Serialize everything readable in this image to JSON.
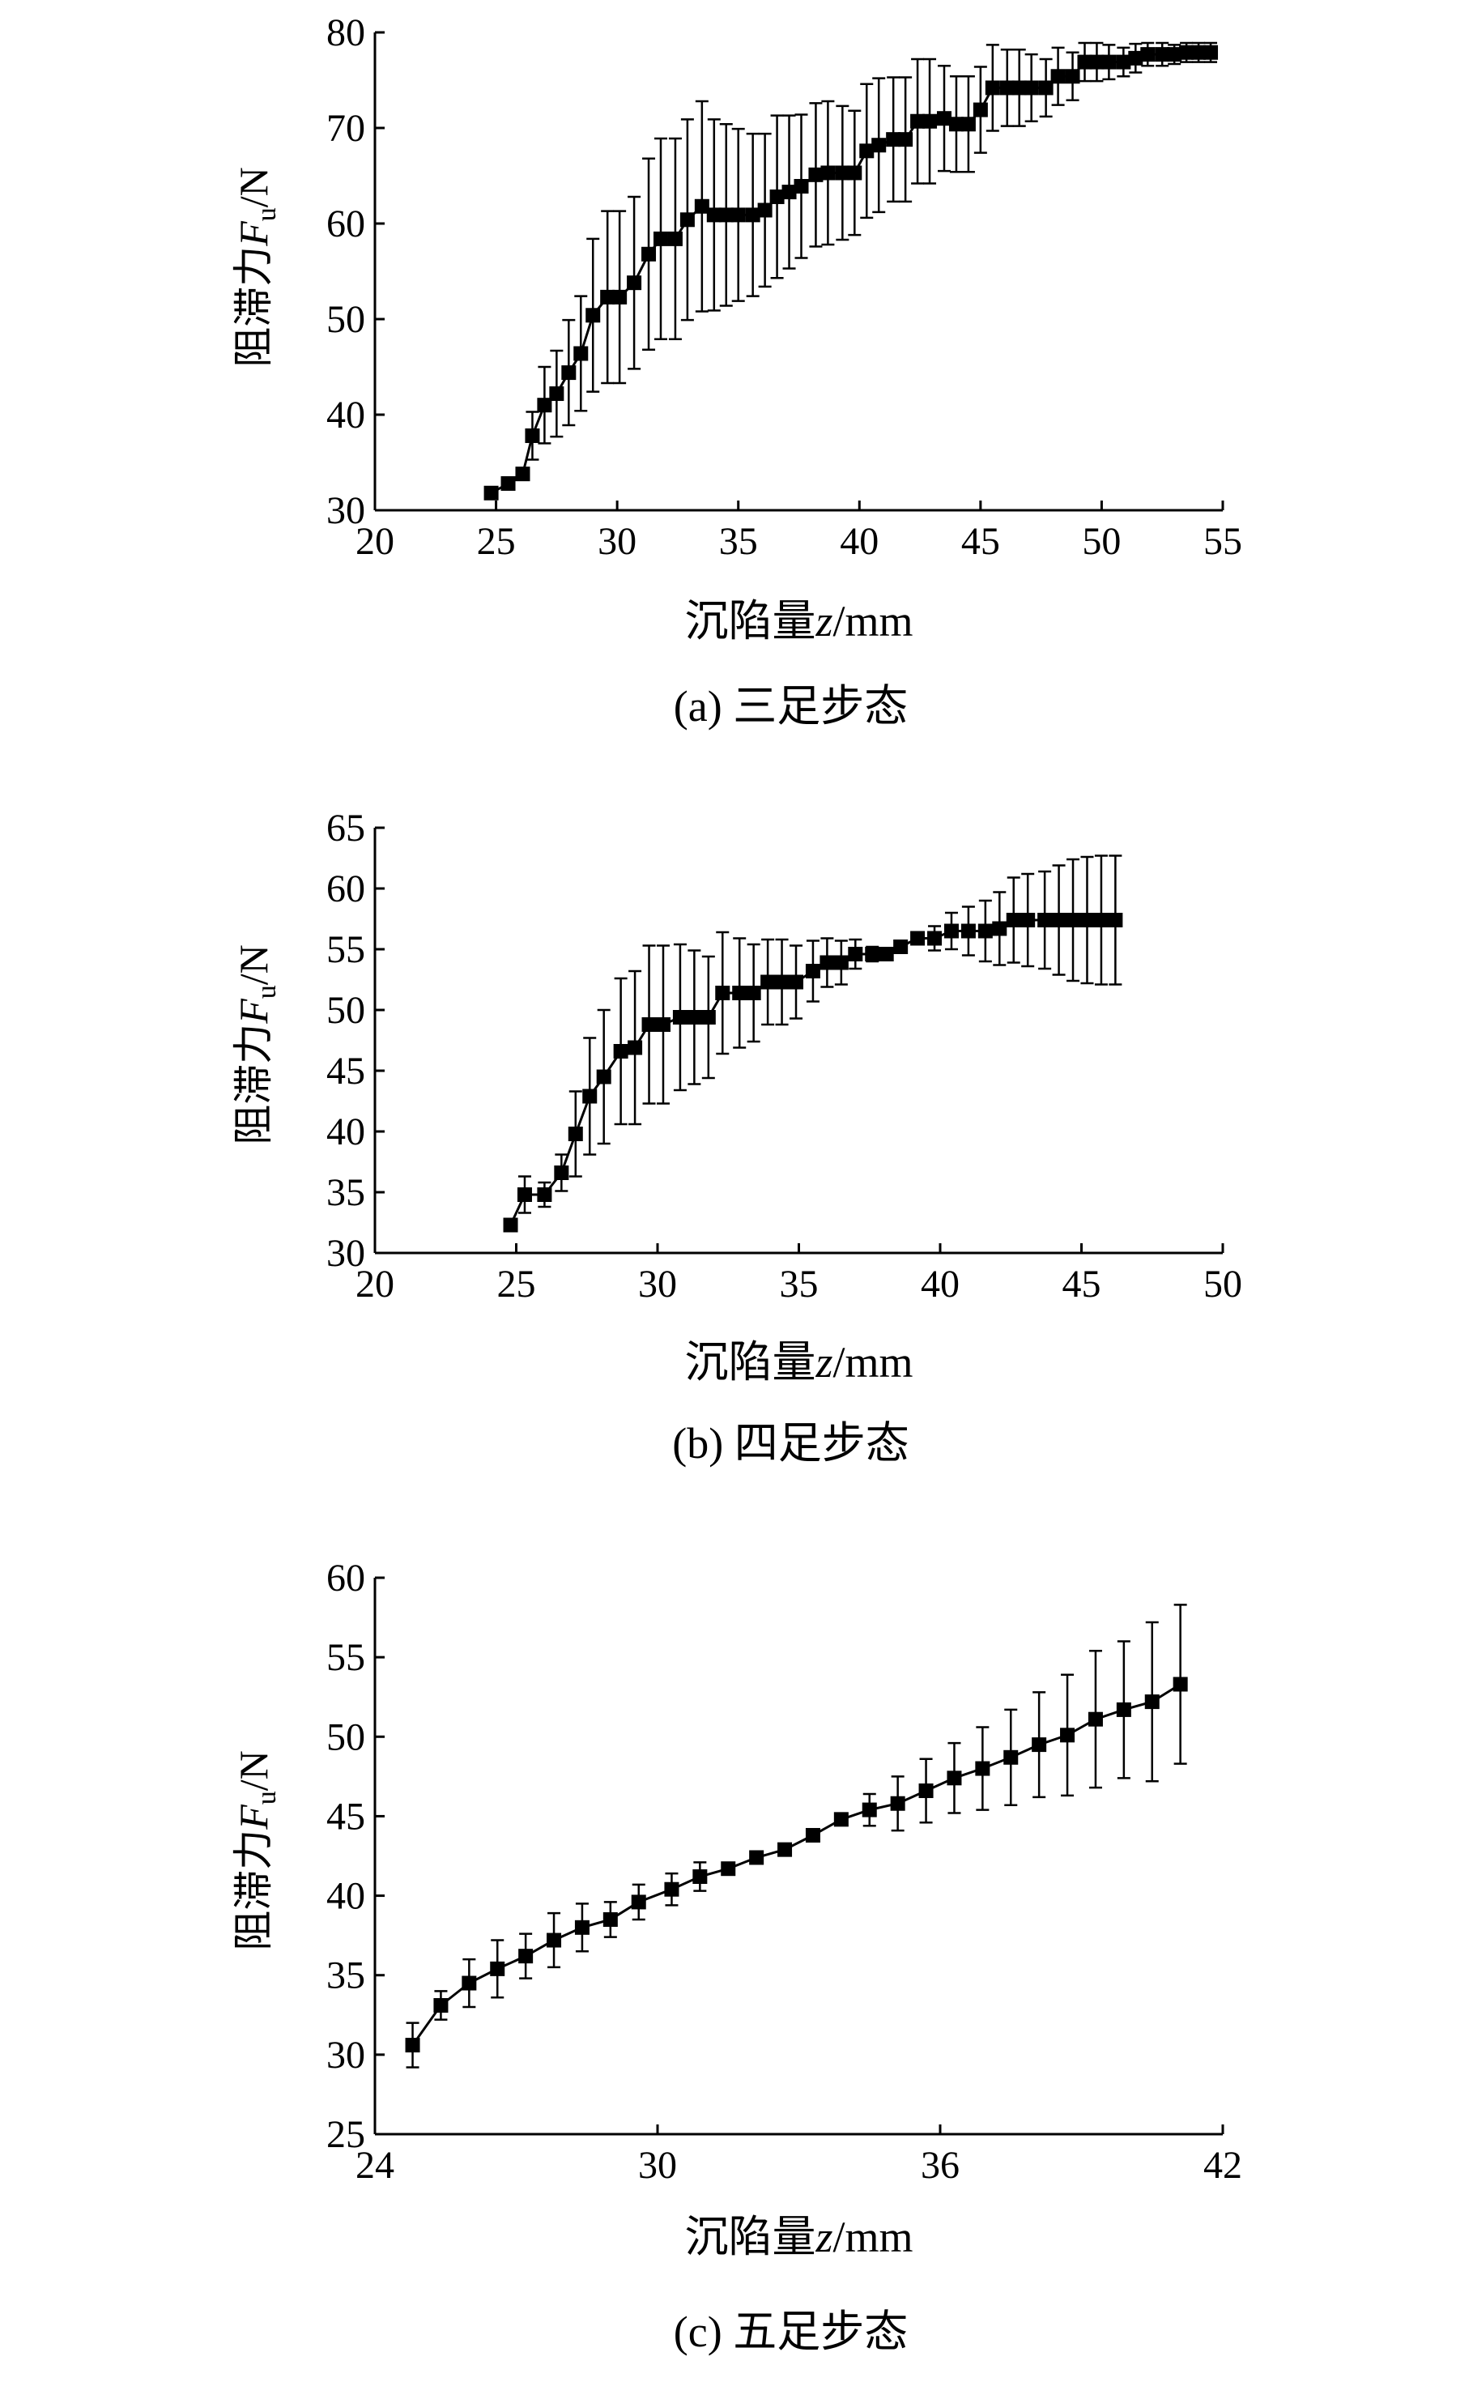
{
  "chart_data": [
    {
      "type": "line",
      "caption": "(a) 三足步态",
      "xlabel_prefix": "沉陷量",
      "xlabel_var": "z",
      "xlabel_unit": "/mm",
      "ylabel_prefix": "阻滞力",
      "ylabel_var": "F",
      "ylabel_sub": "u",
      "ylabel_unit": "/N",
      "xlim": [
        20,
        55
      ],
      "ylim": [
        30,
        80
      ],
      "xticks": [
        20,
        25,
        30,
        35,
        40,
        45,
        50,
        55
      ],
      "yticks": [
        30,
        40,
        50,
        60,
        70,
        80
      ],
      "xtick_labels": [
        "20",
        "25",
        "30",
        "35",
        "40",
        "45",
        "50",
        "55"
      ],
      "ytick_labels": [
        "30",
        "40",
        "50",
        "60",
        "70",
        "80"
      ],
      "series": [
        {
          "name": "三足步态",
          "x": [
            24.8,
            25.5,
            26.1,
            26.5,
            27.0,
            27.5,
            28.0,
            28.5,
            29.0,
            29.6,
            30.1,
            30.7,
            31.3,
            31.8,
            32.4,
            32.9,
            33.5,
            34.0,
            34.5,
            35.0,
            35.6,
            36.1,
            36.6,
            37.1,
            37.6,
            38.2,
            38.7,
            39.3,
            39.8,
            40.3,
            40.8,
            41.4,
            41.9,
            42.4,
            42.9,
            43.5,
            44.0,
            44.5,
            45.0,
            45.5,
            46.1,
            46.6,
            47.1,
            47.7,
            48.2,
            48.8,
            49.3,
            49.8,
            50.3,
            50.9,
            51.4,
            51.9,
            52.5,
            53.0,
            53.5,
            54.0,
            54.5
          ],
          "y": [
            31.8,
            32.8,
            33.8,
            37.8,
            41.0,
            42.2,
            44.4,
            46.4,
            50.4,
            52.3,
            52.3,
            53.8,
            56.8,
            58.4,
            58.4,
            60.4,
            61.8,
            60.9,
            60.9,
            60.9,
            60.9,
            61.4,
            62.8,
            63.3,
            63.9,
            65.1,
            65.3,
            65.3,
            65.3,
            67.6,
            68.2,
            68.8,
            68.8,
            70.7,
            70.7,
            71.0,
            70.4,
            70.4,
            71.9,
            74.2,
            74.2,
            74.2,
            74.2,
            74.2,
            75.4,
            75.4,
            76.9,
            76.9,
            76.9,
            76.9,
            77.3,
            77.7,
            77.7,
            77.7,
            77.9,
            77.9,
            77.9
          ],
          "err": [
            0,
            0,
            0,
            2.5,
            4.0,
            4.5,
            5.5,
            6.0,
            8.0,
            9.0,
            9.0,
            9.0,
            10.0,
            10.5,
            10.5,
            10.5,
            11.0,
            10.0,
            9.5,
            9.0,
            8.5,
            8.0,
            8.5,
            8.0,
            7.5,
            7.5,
            7.5,
            7.0,
            6.5,
            7.0,
            7.0,
            6.5,
            6.5,
            6.5,
            6.5,
            5.5,
            5.0,
            5.0,
            4.5,
            4.5,
            4.0,
            4.0,
            3.5,
            3.0,
            3.0,
            2.5,
            2.0,
            2.0,
            1.8,
            1.5,
            1.5,
            1.2,
            1.2,
            1.0,
            1.0,
            1.0,
            1.0
          ]
        }
      ]
    },
    {
      "type": "line",
      "caption": "(b) 四足步态",
      "xlabel_prefix": "沉陷量",
      "xlabel_var": "z",
      "xlabel_unit": "/mm",
      "ylabel_prefix": "阻滞力",
      "ylabel_var": "F",
      "ylabel_sub": "u",
      "ylabel_unit": "/N",
      "xlim": [
        20,
        50
      ],
      "ylim": [
        30,
        65
      ],
      "xticks": [
        20,
        25,
        30,
        35,
        40,
        45,
        50
      ],
      "yticks": [
        30,
        35,
        40,
        45,
        50,
        55,
        60,
        65
      ],
      "xtick_labels": [
        "20",
        "25",
        "30",
        "35",
        "40",
        "45",
        "50"
      ],
      "ytick_labels": [
        "30",
        "35",
        "40",
        "45",
        "50",
        "55",
        "60",
        "65"
      ],
      "series": [
        {
          "name": "四足步态",
          "x": [
            24.8,
            25.3,
            26.0,
            26.6,
            27.1,
            27.6,
            28.1,
            28.7,
            29.2,
            29.7,
            30.2,
            30.8,
            31.3,
            31.8,
            32.3,
            32.9,
            33.4,
            33.9,
            34.4,
            34.9,
            35.5,
            36.0,
            36.5,
            37.0,
            37.6,
            38.1,
            38.6,
            39.2,
            39.8,
            40.4,
            41.0,
            41.6,
            42.1,
            42.6,
            43.1,
            43.7,
            44.2,
            44.7,
            45.2,
            45.7,
            46.2
          ],
          "y": [
            32.3,
            34.8,
            34.8,
            36.6,
            39.8,
            42.9,
            44.5,
            46.6,
            46.9,
            48.8,
            48.8,
            49.4,
            49.4,
            49.4,
            51.4,
            51.4,
            51.4,
            52.3,
            52.3,
            52.3,
            53.2,
            53.9,
            53.9,
            54.6,
            54.6,
            54.6,
            55.2,
            55.9,
            55.9,
            56.5,
            56.5,
            56.5,
            56.7,
            57.4,
            57.4,
            57.4,
            57.4,
            57.4,
            57.4,
            57.4,
            57.4
          ],
          "err": [
            0,
            1.5,
            1.0,
            1.5,
            3.5,
            4.8,
            5.5,
            6.0,
            6.3,
            6.5,
            6.5,
            6.0,
            5.5,
            5.0,
            5.0,
            4.5,
            4.0,
            3.5,
            3.5,
            3.0,
            2.5,
            2.0,
            1.8,
            1.2,
            0.6,
            0.3,
            0.3,
            0.5,
            1.0,
            1.5,
            2.0,
            2.5,
            3.0,
            3.5,
            3.8,
            4.0,
            4.5,
            5.0,
            5.2,
            5.3,
            5.3
          ]
        }
      ]
    },
    {
      "type": "line",
      "caption": "(c) 五足步态",
      "xlabel_prefix": "沉陷量",
      "xlabel_var": "z",
      "xlabel_unit": "/mm",
      "ylabel_prefix": "阻滞力",
      "ylabel_var": "F",
      "ylabel_sub": "u",
      "ylabel_unit": "/N",
      "xlim": [
        24,
        42
      ],
      "ylim": [
        25,
        60
      ],
      "xticks": [
        24,
        30,
        36,
        42
      ],
      "yticks": [
        25,
        30,
        35,
        40,
        45,
        50,
        55,
        60
      ],
      "xtick_labels": [
        "24",
        "30",
        "36",
        "42"
      ],
      "ytick_labels": [
        "25",
        "30",
        "35",
        "40",
        "45",
        "50",
        "55",
        "60"
      ],
      "series": [
        {
          "name": "五足步态",
          "x": [
            24.8,
            25.4,
            26.0,
            26.6,
            27.2,
            27.8,
            28.4,
            29.0,
            29.6,
            30.3,
            30.9,
            31.5,
            32.1,
            32.7,
            33.3,
            33.9,
            34.5,
            35.1,
            35.7,
            36.3,
            36.9,
            37.5,
            38.1,
            38.7,
            39.3,
            39.9,
            40.5,
            41.1
          ],
          "y": [
            30.6,
            33.1,
            34.5,
            35.4,
            36.2,
            37.2,
            38.0,
            38.5,
            39.6,
            40.4,
            41.2,
            41.7,
            42.4,
            42.9,
            43.8,
            44.8,
            45.4,
            45.8,
            46.6,
            47.4,
            48.0,
            48.7,
            49.5,
            50.1,
            51.1,
            51.7,
            52.2,
            53.3
          ],
          "err": [
            1.4,
            0.9,
            1.5,
            1.8,
            1.4,
            1.7,
            1.5,
            1.1,
            1.1,
            1.0,
            0.9,
            0.2,
            0.2,
            0.2,
            0.3,
            0.3,
            1.0,
            1.7,
            2.0,
            2.2,
            2.6,
            3.0,
            3.3,
            3.8,
            4.3,
            4.3,
            5.0,
            5.0
          ]
        }
      ]
    }
  ]
}
